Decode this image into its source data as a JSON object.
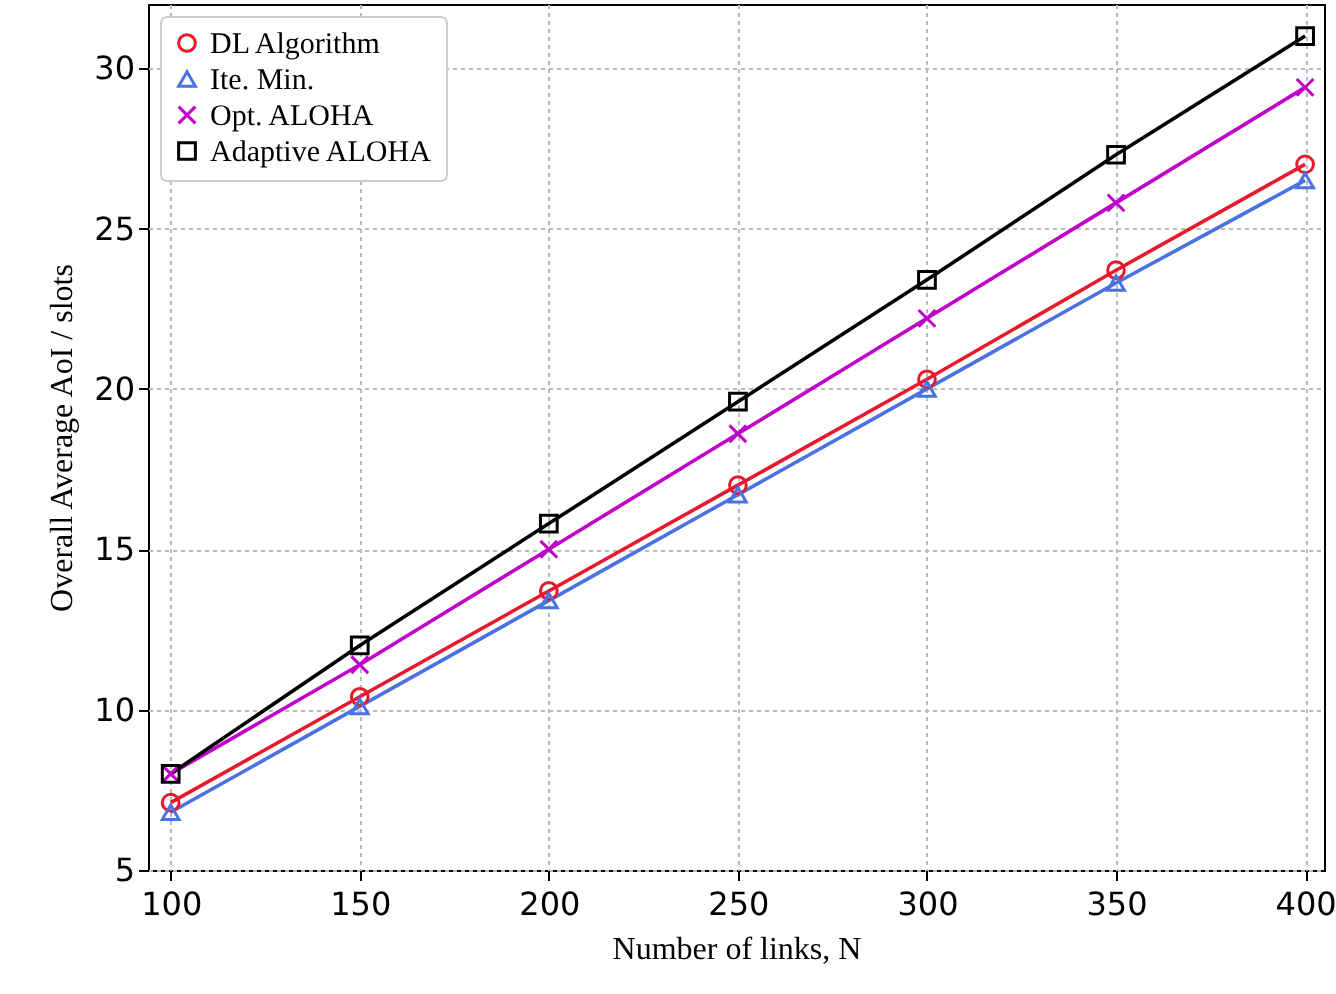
{
  "chart_data": {
    "type": "line",
    "xlabel": "Number of links, N",
    "ylabel": "Overall Average AoI / slots",
    "x": [
      100,
      150,
      200,
      250,
      300,
      350,
      400
    ],
    "series": [
      {
        "name": "DL Algorithm",
        "color": "#e8192c",
        "marker": "circle",
        "values": [
          7.1,
          10.4,
          13.7,
          17.0,
          20.3,
          23.7,
          27.0
        ]
      },
      {
        "name": "Ite. Min.",
        "color": "#4a72e0",
        "marker": "triangle",
        "values": [
          6.8,
          10.1,
          13.4,
          16.7,
          20.0,
          23.3,
          26.5
        ]
      },
      {
        "name": "Opt. ALOHA",
        "color": "#c000c8",
        "marker": "cross",
        "values": [
          8.0,
          11.4,
          15.0,
          18.6,
          22.2,
          25.8,
          29.4
        ]
      },
      {
        "name": "Adaptive ALOHA",
        "color": "#000000",
        "marker": "square",
        "values": [
          8.0,
          12.0,
          15.8,
          19.6,
          23.4,
          27.3,
          31.0
        ]
      }
    ],
    "xlim": [
      94,
      405
    ],
    "xticks": [
      100,
      150,
      200,
      250,
      300,
      350,
      400
    ],
    "ylim": [
      5,
      32
    ],
    "yticks": [
      5,
      10,
      15,
      20,
      25,
      30
    ],
    "grid": true,
    "legend": "top left",
    "line_style": "solid"
  }
}
